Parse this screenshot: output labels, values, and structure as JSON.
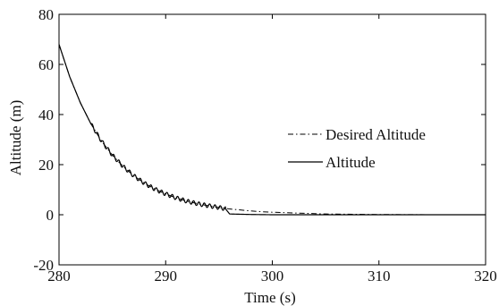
{
  "chart_data": {
    "type": "line",
    "xlabel": "Time (s)",
    "ylabel": "Altitude (m)",
    "xlim": [
      280,
      320
    ],
    "ylim": [
      -20,
      80
    ],
    "xticks": [
      "280",
      "290",
      "300",
      "310",
      "320"
    ],
    "yticks": [
      "-20",
      "0",
      "20",
      "40",
      "60",
      "80"
    ],
    "grid": false,
    "legend_position": "right",
    "series": [
      {
        "name": "Desired Altitude",
        "line_style": "dash-dot",
        "color": "#000000",
        "x": [
          280,
          281,
          282,
          283,
          284,
          285,
          286,
          287,
          288,
          289,
          290,
          291,
          292,
          293,
          294,
          295,
          296,
          297,
          298,
          299,
          300,
          302,
          305,
          310,
          315,
          320
        ],
        "y": [
          68,
          55.1,
          44.7,
          36.2,
          29.3,
          23.8,
          19.3,
          15.6,
          12.6,
          10.2,
          8.3,
          6.7,
          5.4,
          4.4,
          3.6,
          2.9,
          2.3,
          1.9,
          1.5,
          1.2,
          1.0,
          0.7,
          0.3,
          0.1,
          0.0,
          0.0
        ]
      },
      {
        "name": "Altitude",
        "line_style": "solid",
        "color": "#000000",
        "x": [
          280,
          281,
          282,
          283,
          284,
          285,
          286,
          287,
          288,
          289,
          290,
          291,
          292,
          293,
          294,
          295,
          295.6,
          296,
          298,
          300,
          305,
          310,
          315,
          320
        ],
        "y": [
          68,
          55.1,
          44.7,
          36.2,
          29.3,
          23.8,
          19.3,
          15.6,
          12.6,
          10.2,
          8.3,
          6.7,
          5.4,
          4.4,
          3.6,
          2.9,
          2.4,
          0.3,
          0.1,
          0.0,
          0.0,
          0.0,
          0.0,
          0.0
        ],
        "oscillation": {
          "amplitude": 0.8,
          "period_s": 0.5,
          "from": 283,
          "to": 295.6
        }
      }
    ]
  }
}
